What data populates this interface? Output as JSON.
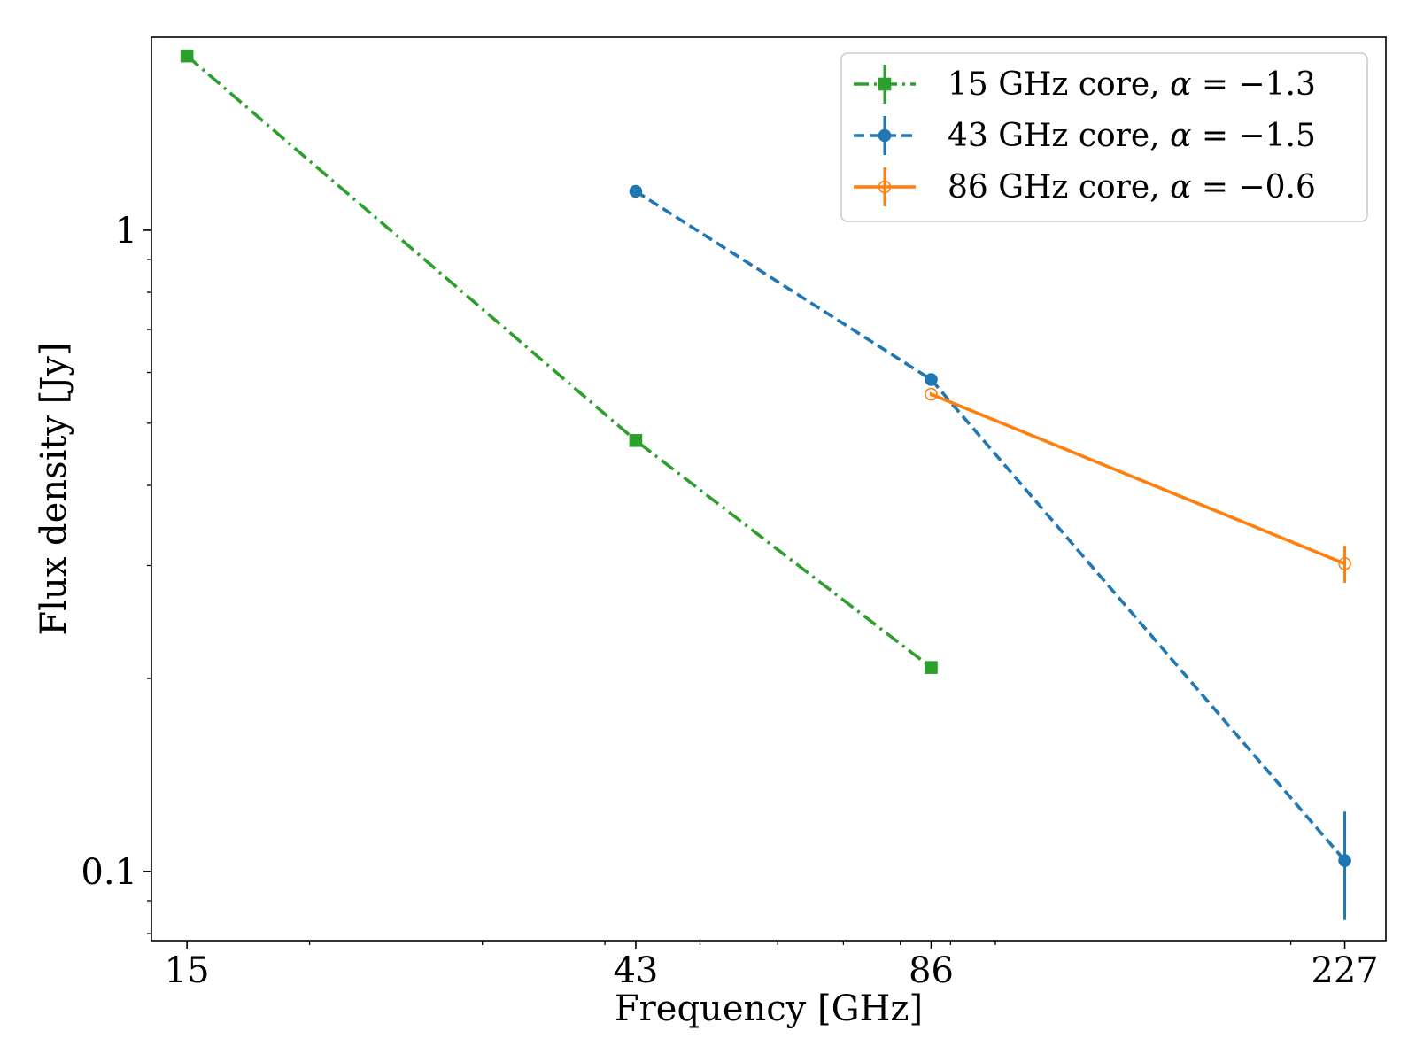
{
  "chart_data": {
    "type": "line",
    "xscale": "log",
    "yscale": "log",
    "xlabel": "Frequency [GHz]",
    "ylabel": "Flux density [Jy]",
    "xlim": [
      13.8,
      250
    ],
    "ylim": [
      0.078,
      2.0
    ],
    "xticks": [
      15,
      43,
      86,
      227
    ],
    "xtick_labels": [
      "15",
      "43",
      "86",
      "227"
    ],
    "yticks": [
      0.1,
      1
    ],
    "ytick_labels": [
      "0.1",
      "1"
    ],
    "legend_position": "top-right",
    "series": [
      {
        "name": "15 GHz core, α = −1.3",
        "legend_prefix": "15 GHz core, ",
        "legend_alpha": "α",
        "legend_value": " = −1.3",
        "color": "#2ca02c",
        "linestyle": "dashdot",
        "marker": "square",
        "filled": true,
        "x": [
          15,
          43,
          86
        ],
        "y": [
          1.87,
          0.47,
          0.208
        ],
        "yerr": [
          0.02,
          0.006,
          0.004
        ]
      },
      {
        "name": "43 GHz core, α = −1.5",
        "legend_prefix": "43 GHz core, ",
        "legend_alpha": "α",
        "legend_value": " = −1.5",
        "color": "#1f77b4",
        "linestyle": "dashed",
        "marker": "circle",
        "filled": true,
        "x": [
          43,
          86,
          227
        ],
        "y": [
          1.15,
          0.585,
          0.104
        ],
        "yerr": [
          0.01,
          0.006,
          0.02
        ]
      },
      {
        "name": "86 GHz core, α = −0.6",
        "legend_prefix": "86 GHz core, ",
        "legend_alpha": "α",
        "legend_value": " = −0.6",
        "color": "#ff7f0e",
        "linestyle": "solid",
        "marker": "circle",
        "filled": false,
        "x": [
          86,
          227
        ],
        "y": [
          0.555,
          0.302
        ],
        "yerr": [
          0.004,
          0.02
        ]
      }
    ]
  }
}
